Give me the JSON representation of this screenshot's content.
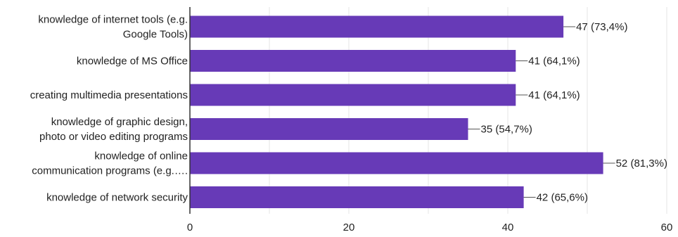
{
  "chart_data": {
    "type": "bar",
    "orientation": "horizontal",
    "categories": [
      [
        "knowledge of internet tools (e.g.",
        "Google Tools)"
      ],
      [
        "knowledge of MS Office"
      ],
      [
        "creating multimedia presentations"
      ],
      [
        "knowledge of graphic design,",
        "photo or video editing programs"
      ],
      [
        "knowledge of online",
        "communication programs (e.g.…."
      ],
      [
        "knowledge of network security"
      ]
    ],
    "values": [
      47,
      41,
      41,
      35,
      52,
      42
    ],
    "data_labels": [
      "47 (73,4%)",
      "41 (64,1%)",
      "41 (64,1%)",
      "35 (54,7%)",
      "52 (81,3%)",
      "42 (65,6%)"
    ],
    "xlim": [
      0,
      60
    ],
    "x_ticks": [
      0,
      20,
      40,
      60
    ],
    "grid": true,
    "bar_color": "#673ab7"
  }
}
